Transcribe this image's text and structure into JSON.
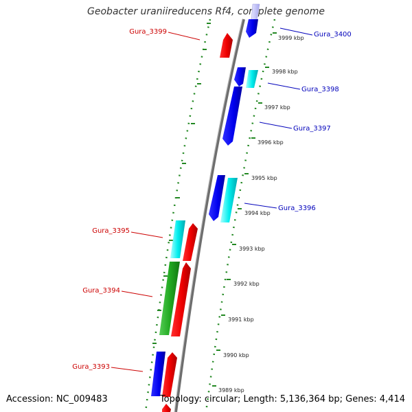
{
  "title": "Geobacter uraniireducens Rf4, complete genome",
  "accession": "Accession: NC_009483",
  "topology": "Topology: circular; Length: 5,136,364 bp; Genes: 4,414",
  "colors": {
    "forward_cds": "#ff0000",
    "reverse_cds": "#0000ee",
    "cyan_feature": "#00e5ee",
    "green_feature": "#22aa22",
    "backbone": "#888888",
    "ruler": "#228822",
    "left_label": "#cc0000",
    "right_label": "#0000bb"
  },
  "ruler_labels": [
    "3999 kbp",
    "3998 kbp",
    "3997 kbp",
    "3996 kbp",
    "3995 kbp",
    "3994 kbp",
    "3993 kbp",
    "3992 kbp",
    "3991 kbp",
    "3990 kbp",
    "3989 kbp"
  ],
  "genes_left": [
    "Gura_3399",
    "Gura_3395",
    "Gura_3394",
    "Gura_3393"
  ],
  "genes_right": [
    "Gura_3400",
    "Gura_3398",
    "Gura_3397",
    "Gura_3396"
  ]
}
